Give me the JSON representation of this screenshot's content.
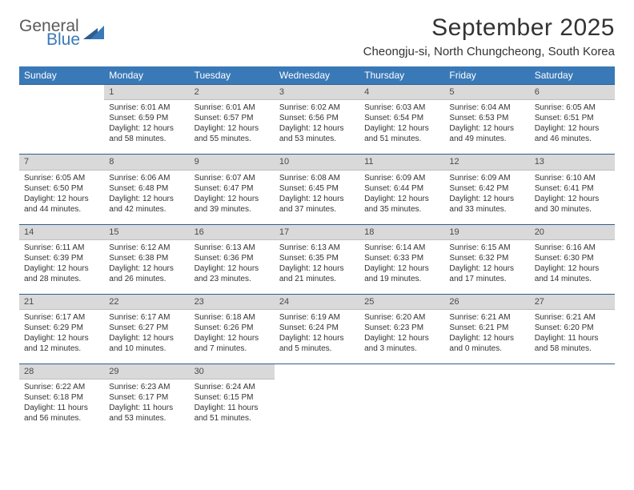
{
  "logo": {
    "text1": "General",
    "text2": "Blue"
  },
  "title": "September 2025",
  "location": "Cheongju-si, North Chungcheong, South Korea",
  "colors": {
    "header_bg": "#3a79b7",
    "header_border": "#2f5e8f",
    "daynum_bg": "#d9d9d9",
    "text": "#333333",
    "logo_gray": "#5a5a5a",
    "logo_blue": "#3a79b7",
    "background": "#ffffff"
  },
  "fonts": {
    "title_size": 30,
    "location_size": 15,
    "dayhdr_size": 12,
    "cell_size": 10
  },
  "day_headers": [
    "Sunday",
    "Monday",
    "Tuesday",
    "Wednesday",
    "Thursday",
    "Friday",
    "Saturday"
  ],
  "weeks": [
    {
      "nums": [
        "",
        "1",
        "2",
        "3",
        "4",
        "5",
        "6"
      ],
      "cells": [
        null,
        {
          "sunrise": "Sunrise: 6:01 AM",
          "sunset": "Sunset: 6:59 PM",
          "daylight": "Daylight: 12 hours and 58 minutes."
        },
        {
          "sunrise": "Sunrise: 6:01 AM",
          "sunset": "Sunset: 6:57 PM",
          "daylight": "Daylight: 12 hours and 55 minutes."
        },
        {
          "sunrise": "Sunrise: 6:02 AM",
          "sunset": "Sunset: 6:56 PM",
          "daylight": "Daylight: 12 hours and 53 minutes."
        },
        {
          "sunrise": "Sunrise: 6:03 AM",
          "sunset": "Sunset: 6:54 PM",
          "daylight": "Daylight: 12 hours and 51 minutes."
        },
        {
          "sunrise": "Sunrise: 6:04 AM",
          "sunset": "Sunset: 6:53 PM",
          "daylight": "Daylight: 12 hours and 49 minutes."
        },
        {
          "sunrise": "Sunrise: 6:05 AM",
          "sunset": "Sunset: 6:51 PM",
          "daylight": "Daylight: 12 hours and 46 minutes."
        }
      ]
    },
    {
      "nums": [
        "7",
        "8",
        "9",
        "10",
        "11",
        "12",
        "13"
      ],
      "cells": [
        {
          "sunrise": "Sunrise: 6:05 AM",
          "sunset": "Sunset: 6:50 PM",
          "daylight": "Daylight: 12 hours and 44 minutes."
        },
        {
          "sunrise": "Sunrise: 6:06 AM",
          "sunset": "Sunset: 6:48 PM",
          "daylight": "Daylight: 12 hours and 42 minutes."
        },
        {
          "sunrise": "Sunrise: 6:07 AM",
          "sunset": "Sunset: 6:47 PM",
          "daylight": "Daylight: 12 hours and 39 minutes."
        },
        {
          "sunrise": "Sunrise: 6:08 AM",
          "sunset": "Sunset: 6:45 PM",
          "daylight": "Daylight: 12 hours and 37 minutes."
        },
        {
          "sunrise": "Sunrise: 6:09 AM",
          "sunset": "Sunset: 6:44 PM",
          "daylight": "Daylight: 12 hours and 35 minutes."
        },
        {
          "sunrise": "Sunrise: 6:09 AM",
          "sunset": "Sunset: 6:42 PM",
          "daylight": "Daylight: 12 hours and 33 minutes."
        },
        {
          "sunrise": "Sunrise: 6:10 AM",
          "sunset": "Sunset: 6:41 PM",
          "daylight": "Daylight: 12 hours and 30 minutes."
        }
      ]
    },
    {
      "nums": [
        "14",
        "15",
        "16",
        "17",
        "18",
        "19",
        "20"
      ],
      "cells": [
        {
          "sunrise": "Sunrise: 6:11 AM",
          "sunset": "Sunset: 6:39 PM",
          "daylight": "Daylight: 12 hours and 28 minutes."
        },
        {
          "sunrise": "Sunrise: 6:12 AM",
          "sunset": "Sunset: 6:38 PM",
          "daylight": "Daylight: 12 hours and 26 minutes."
        },
        {
          "sunrise": "Sunrise: 6:13 AM",
          "sunset": "Sunset: 6:36 PM",
          "daylight": "Daylight: 12 hours and 23 minutes."
        },
        {
          "sunrise": "Sunrise: 6:13 AM",
          "sunset": "Sunset: 6:35 PM",
          "daylight": "Daylight: 12 hours and 21 minutes."
        },
        {
          "sunrise": "Sunrise: 6:14 AM",
          "sunset": "Sunset: 6:33 PM",
          "daylight": "Daylight: 12 hours and 19 minutes."
        },
        {
          "sunrise": "Sunrise: 6:15 AM",
          "sunset": "Sunset: 6:32 PM",
          "daylight": "Daylight: 12 hours and 17 minutes."
        },
        {
          "sunrise": "Sunrise: 6:16 AM",
          "sunset": "Sunset: 6:30 PM",
          "daylight": "Daylight: 12 hours and 14 minutes."
        }
      ]
    },
    {
      "nums": [
        "21",
        "22",
        "23",
        "24",
        "25",
        "26",
        "27"
      ],
      "cells": [
        {
          "sunrise": "Sunrise: 6:17 AM",
          "sunset": "Sunset: 6:29 PM",
          "daylight": "Daylight: 12 hours and 12 minutes."
        },
        {
          "sunrise": "Sunrise: 6:17 AM",
          "sunset": "Sunset: 6:27 PM",
          "daylight": "Daylight: 12 hours and 10 minutes."
        },
        {
          "sunrise": "Sunrise: 6:18 AM",
          "sunset": "Sunset: 6:26 PM",
          "daylight": "Daylight: 12 hours and 7 minutes."
        },
        {
          "sunrise": "Sunrise: 6:19 AM",
          "sunset": "Sunset: 6:24 PM",
          "daylight": "Daylight: 12 hours and 5 minutes."
        },
        {
          "sunrise": "Sunrise: 6:20 AM",
          "sunset": "Sunset: 6:23 PM",
          "daylight": "Daylight: 12 hours and 3 minutes."
        },
        {
          "sunrise": "Sunrise: 6:21 AM",
          "sunset": "Sunset: 6:21 PM",
          "daylight": "Daylight: 12 hours and 0 minutes."
        },
        {
          "sunrise": "Sunrise: 6:21 AM",
          "sunset": "Sunset: 6:20 PM",
          "daylight": "Daylight: 11 hours and 58 minutes."
        }
      ]
    },
    {
      "nums": [
        "28",
        "29",
        "30",
        "",
        "",
        "",
        ""
      ],
      "cells": [
        {
          "sunrise": "Sunrise: 6:22 AM",
          "sunset": "Sunset: 6:18 PM",
          "daylight": "Daylight: 11 hours and 56 minutes."
        },
        {
          "sunrise": "Sunrise: 6:23 AM",
          "sunset": "Sunset: 6:17 PM",
          "daylight": "Daylight: 11 hours and 53 minutes."
        },
        {
          "sunrise": "Sunrise: 6:24 AM",
          "sunset": "Sunset: 6:15 PM",
          "daylight": "Daylight: 11 hours and 51 minutes."
        },
        null,
        null,
        null,
        null
      ]
    }
  ]
}
